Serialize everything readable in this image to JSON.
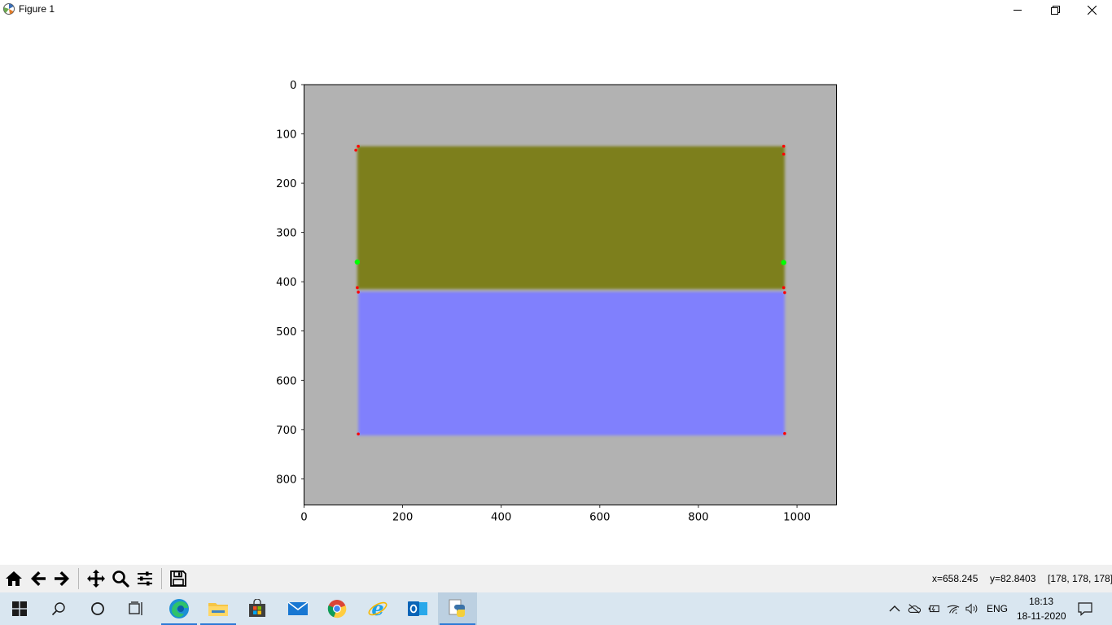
{
  "window": {
    "title": "Figure 1"
  },
  "chart_data": {
    "type": "image",
    "title": "",
    "xlabel": "",
    "ylabel": "",
    "xlim": [
      0,
      1080
    ],
    "ylim": [
      853,
      0
    ],
    "x_ticks": [
      0,
      200,
      400,
      600,
      800,
      1000
    ],
    "y_ticks": [
      0,
      100,
      200,
      300,
      400,
      500,
      600,
      700,
      800
    ],
    "background_color": "#b2b2b2",
    "regions": [
      {
        "x": [
          108,
          975
        ],
        "y": [
          125,
          415
        ],
        "color": "#7d7f1f"
      },
      {
        "x": [
          110,
          975
        ],
        "y": [
          420,
          712
        ],
        "color": "#8080fd"
      }
    ],
    "red_points": [
      [
        110,
        125
      ],
      [
        105,
        133
      ],
      [
        973,
        125
      ],
      [
        973,
        141
      ],
      [
        108,
        412
      ],
      [
        110,
        421
      ],
      [
        973,
        412
      ],
      [
        975,
        422
      ],
      [
        110,
        709
      ],
      [
        975,
        708
      ]
    ],
    "green_points": [
      [
        108,
        360
      ],
      [
        973,
        361
      ]
    ]
  },
  "toolbar": {
    "buttons": [
      "home-icon",
      "back-arrow-icon",
      "forward-arrow-icon",
      "pan-icon",
      "zoom-icon",
      "configure-subplots-icon",
      "save-icon"
    ],
    "coord_x": "x=658.245",
    "coord_y": "y=82.8403",
    "pixel_value": "[178, 178, 178]"
  },
  "taskbar": {
    "language": "ENG",
    "time": "18:13",
    "date": "18-11-2020"
  }
}
